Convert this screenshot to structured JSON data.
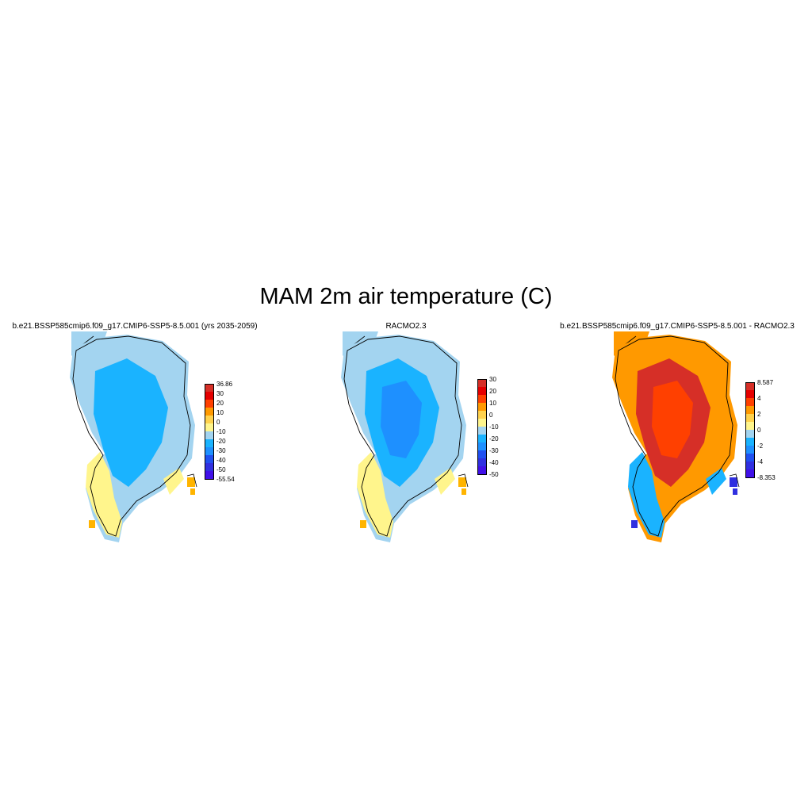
{
  "title": "MAM 2m air temperature (C)",
  "panels": [
    {
      "id": "model",
      "title": "b.e21.BSSP585cmip6.f09_g17.CMIP6-SSP5-8.5.001 (yrs 2035-2059)",
      "colorbar": {
        "colors": [
          "#d62f27",
          "#e50000",
          "#ff4000",
          "#ff9900",
          "#ffd24d",
          "#fff58c",
          "#a3d4f0",
          "#1ab3ff",
          "#1e90ff",
          "#2050f0",
          "#3030e0",
          "#4010e8"
        ],
        "labels": [
          "36.86",
          "30",
          "20",
          "10",
          "0",
          "-10",
          "-20",
          "-30",
          "-40",
          "-50",
          "-55.54"
        ]
      },
      "field": {
        "interior": "#1ab3ff",
        "inner": null,
        "margin": "#a3d4f0",
        "coast": "#fff58c",
        "warm": "#ffb400"
      }
    },
    {
      "id": "racmo",
      "title": "RACMO2.3",
      "colorbar": {
        "colors": [
          "#d62f27",
          "#e50000",
          "#ff4000",
          "#ff9900",
          "#ffd24d",
          "#fff58c",
          "#a3d4f0",
          "#1ab3ff",
          "#1e90ff",
          "#2050f0",
          "#3030e0",
          "#4010e8"
        ],
        "labels": [
          "30",
          "20",
          "10",
          "0",
          "-10",
          "-20",
          "-30",
          "-40",
          "-50"
        ]
      },
      "field": {
        "interior": "#1ab3ff",
        "inner": "#1e90ff",
        "margin": "#a3d4f0",
        "coast": "#fff58c",
        "warm": "#ffb400"
      }
    },
    {
      "id": "diff",
      "title": "b.e21.BSSP585cmip6.f09_g17.CMIP6-SSP5-8.5.001 - RACMO2.3",
      "colorbar": {
        "colors": [
          "#d62f27",
          "#e50000",
          "#ff4000",
          "#ff9900",
          "#ffd24d",
          "#fff58c",
          "#a3d4f0",
          "#1ab3ff",
          "#1e90ff",
          "#2050f0",
          "#3030e0",
          "#4010e8"
        ],
        "labels": [
          "8.587",
          "4",
          "2",
          "0",
          "-2",
          "-4",
          "-8.353"
        ]
      },
      "field": {
        "interior": "#d62f27",
        "inner": "#ff4000",
        "margin": "#ff9900",
        "coast": "#1ab3ff",
        "warm": "#3030e0"
      }
    }
  ]
}
